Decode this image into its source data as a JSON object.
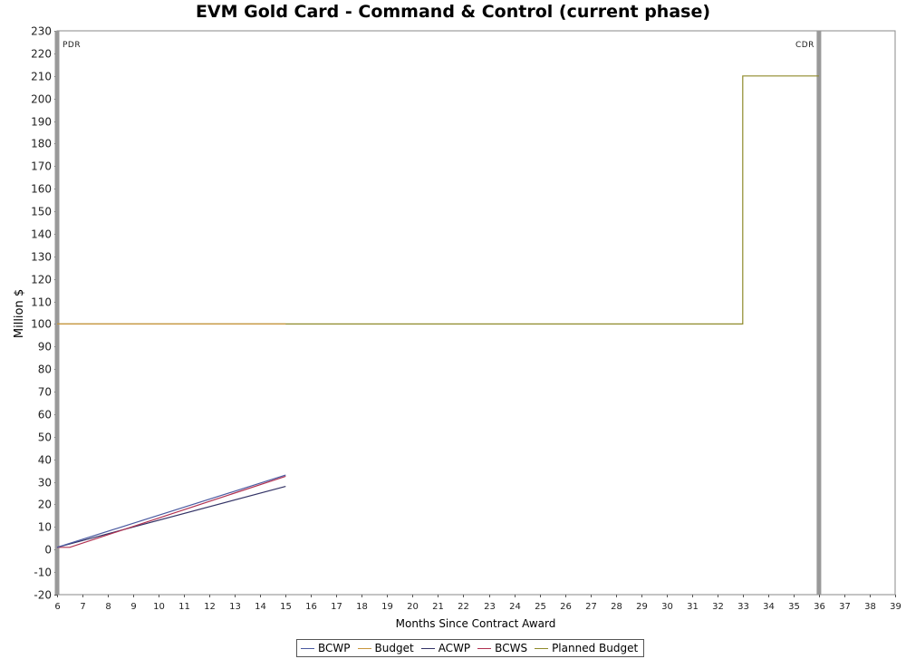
{
  "chart_data": {
    "type": "line",
    "title": "EVM Gold Card - Command & Control (current phase)",
    "xlabel": "Months Since Contract Award",
    "ylabel": "Million $",
    "xlim": [
      6,
      39
    ],
    "ylim": [
      -20,
      230
    ],
    "xticks": [
      6,
      7,
      8,
      9,
      10,
      11,
      12,
      13,
      14,
      15,
      16,
      17,
      18,
      19,
      20,
      21,
      22,
      23,
      24,
      25,
      26,
      27,
      28,
      29,
      30,
      31,
      32,
      33,
      34,
      35,
      36,
      37,
      38,
      39
    ],
    "yticks": [
      -20,
      -10,
      0,
      10,
      20,
      30,
      40,
      50,
      60,
      70,
      80,
      90,
      100,
      110,
      120,
      130,
      140,
      150,
      160,
      170,
      180,
      190,
      200,
      210,
      220,
      230
    ],
    "grid": false,
    "legend_position": "bottom",
    "milestones": [
      {
        "label": "PDR",
        "x": 6
      },
      {
        "label": "CDR",
        "x": 36
      }
    ],
    "series": [
      {
        "name": "BCWP",
        "color": "#4a5aa0",
        "points": [
          [
            6,
            1
          ],
          [
            15,
            33
          ]
        ]
      },
      {
        "name": "Budget",
        "color": "#c8963c",
        "points": [
          [
            6,
            100
          ],
          [
            15,
            100
          ]
        ]
      },
      {
        "name": "ACWP",
        "color": "#333366",
        "points": [
          [
            6,
            1
          ],
          [
            15,
            28
          ]
        ]
      },
      {
        "name": "BCWS",
        "color": "#b03050",
        "points": [
          [
            6,
            1
          ],
          [
            6.5,
            1
          ],
          [
            15,
            32.5
          ]
        ]
      },
      {
        "name": "Planned Budget",
        "color": "#8f8a2a",
        "points": [
          [
            6,
            100
          ],
          [
            33,
            100
          ],
          [
            33,
            210
          ],
          [
            36,
            210
          ]
        ]
      }
    ]
  }
}
